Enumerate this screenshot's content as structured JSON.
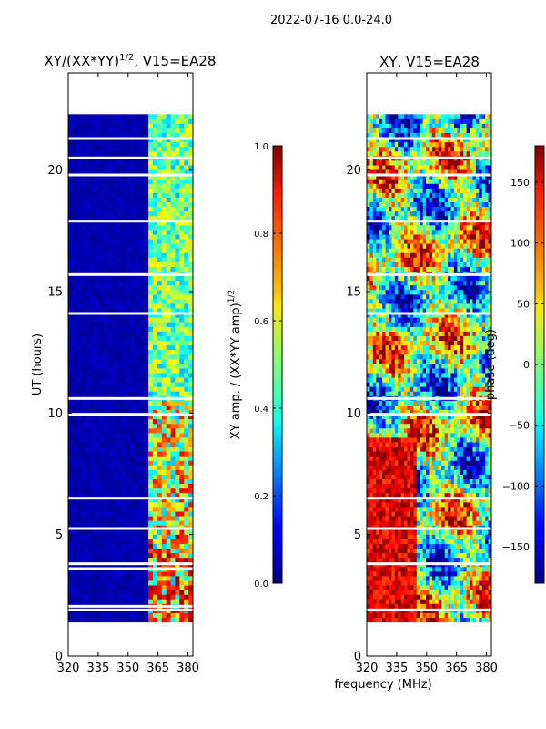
{
  "figure_title": "2022-07-16 0.0-24.0",
  "shared_xlabel": "frequency (MHz)",
  "chart_data": [
    {
      "type": "heatmap",
      "title_prefix": "XY/(XX*YY)",
      "title_sup": "1/2",
      "title_suffix": ", V15=EA28",
      "xlabel": "",
      "ylabel": "UT (hours)",
      "xlim": [
        320,
        382.5
      ],
      "ylim": [
        0,
        24
      ],
      "xticks": [
        320,
        335,
        350,
        365,
        380
      ],
      "yticks": [
        0,
        5,
        10,
        15,
        20
      ],
      "data_coverage_hours": [
        1.4,
        22.3
      ],
      "colorbar": {
        "label": "XY amp. / (XX*YY amp)",
        "label_sup": "1/2",
        "range": [
          0.0,
          1.0
        ],
        "ticks": [
          "0.0",
          "0.2",
          "0.4",
          "0.6",
          "0.8",
          "1.0"
        ],
        "tick_values": [
          0.0,
          0.2,
          0.4,
          0.6,
          0.8,
          1.0
        ],
        "colormap": "jet"
      },
      "description_values": {
        "low_band_mhz": [
          320,
          362
        ],
        "low_band_level": 0.0,
        "high_band_mhz": [
          362,
          382.5
        ],
        "high_band_level_range": [
          0.3,
          0.9
        ]
      },
      "blank_rows_hours": [
        1.9,
        2.05,
        3.6,
        3.8,
        5.25,
        6.5,
        9.95,
        10.6,
        14.1,
        15.7,
        17.9,
        19.8,
        20.5,
        21.3
      ]
    },
    {
      "type": "heatmap",
      "title": "XY, V15=EA28",
      "xlabel": "frequency (MHz)",
      "ylabel": "",
      "xlim": [
        320,
        382.5
      ],
      "ylim": [
        0,
        24
      ],
      "xticks": [
        320,
        335,
        350,
        365,
        380
      ],
      "yticks": [
        0,
        5,
        10,
        15,
        20
      ],
      "data_coverage_hours": [
        1.4,
        22.3
      ],
      "colorbar": {
        "label": "phase (deg)",
        "range": [
          -180,
          180
        ],
        "ticks": [
          "−150",
          "−100",
          "−50",
          "0",
          "50",
          "100",
          "150"
        ],
        "tick_values": [
          -150,
          -100,
          -50,
          0,
          50,
          100,
          150
        ],
        "colormap": "jet"
      },
      "blank_rows_hours": [
        1.9,
        3.8,
        5.25,
        6.5,
        9.95,
        10.6,
        14.1,
        15.7,
        17.9,
        19.8,
        20.5,
        21.3
      ]
    }
  ]
}
